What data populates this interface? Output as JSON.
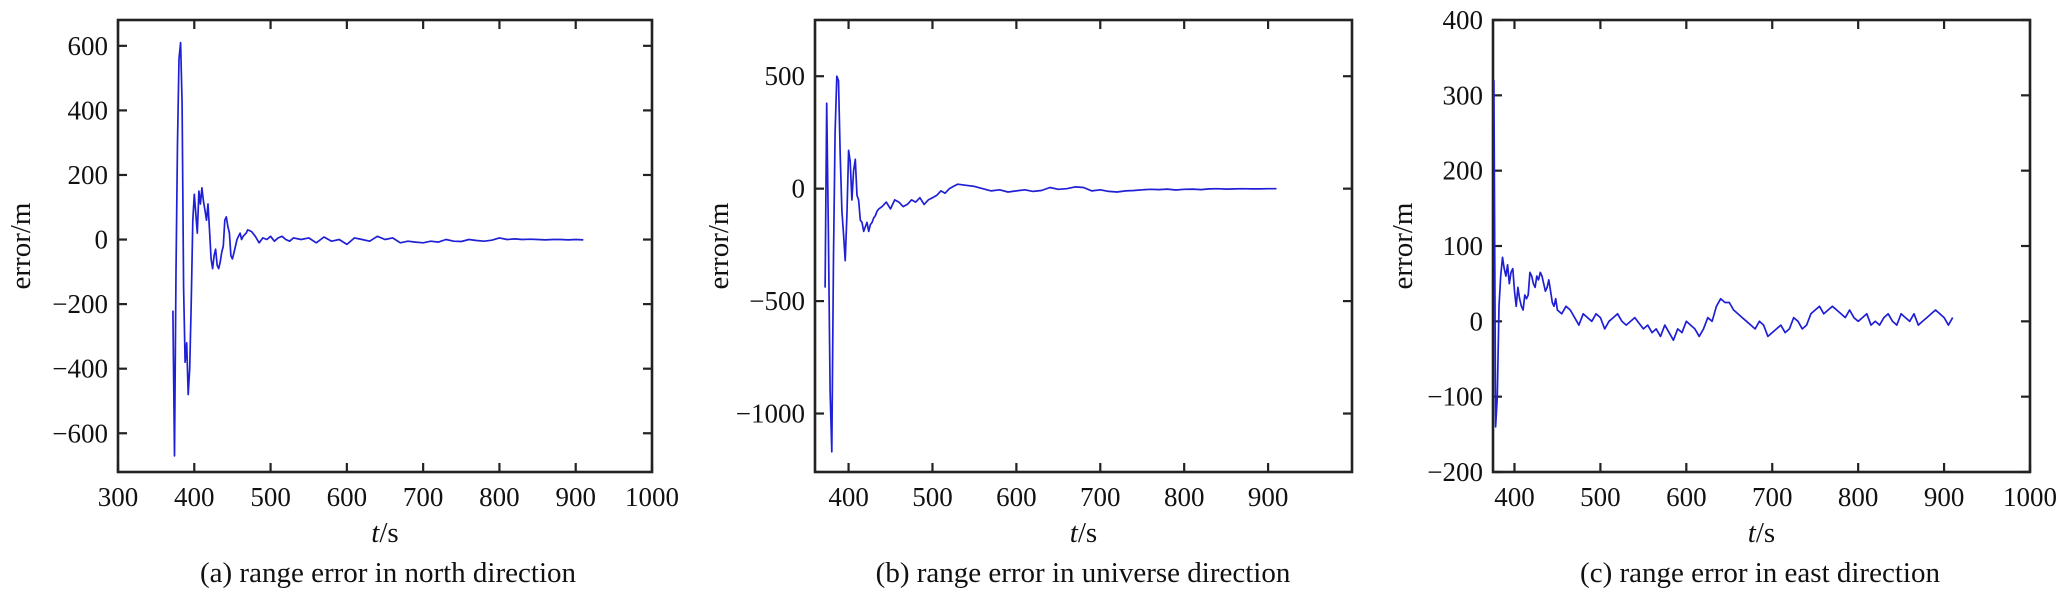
{
  "chart_data": [
    {
      "type": "line",
      "caption": "(a) range error in north direction",
      "xlabel_italic": "t",
      "xlabel_unit": "/s",
      "ylabel": "error/m",
      "xlim": [
        300,
        1000
      ],
      "ylim": [
        -720,
        680
      ],
      "xticks": [
        300,
        400,
        500,
        600,
        700,
        800,
        900,
        1000
      ],
      "yticks": [
        -600,
        -400,
        -200,
        0,
        200,
        400,
        600
      ],
      "ytick_labels": [
        "−600",
        "−400",
        "−200",
        "0",
        "200",
        "400",
        "600"
      ],
      "grid": false,
      "line_color": "#1f1fd6",
      "x": [
        372,
        374,
        376,
        378,
        380,
        382,
        384,
        386,
        388,
        390,
        392,
        394,
        396,
        398,
        400,
        402,
        404,
        406,
        408,
        410,
        412,
        414,
        416,
        418,
        420,
        422,
        424,
        426,
        428,
        430,
        432,
        434,
        436,
        438,
        440,
        442,
        444,
        446,
        448,
        450,
        452,
        454,
        456,
        458,
        460,
        462,
        464,
        466,
        468,
        470,
        475,
        480,
        485,
        490,
        495,
        500,
        505,
        510,
        515,
        520,
        525,
        530,
        540,
        550,
        560,
        570,
        580,
        590,
        600,
        610,
        620,
        630,
        640,
        650,
        660,
        670,
        680,
        690,
        700,
        710,
        720,
        730,
        740,
        750,
        760,
        770,
        780,
        790,
        800,
        810,
        820,
        830,
        840,
        850,
        860,
        870,
        880,
        890,
        900,
        910
      ],
      "y": [
        -220,
        -670,
        -100,
        300,
        560,
        610,
        420,
        -150,
        -380,
        -320,
        -480,
        -400,
        -200,
        60,
        140,
        80,
        20,
        150,
        110,
        160,
        120,
        90,
        60,
        110,
        30,
        -60,
        -90,
        -50,
        -30,
        -80,
        -90,
        -70,
        -40,
        -20,
        60,
        70,
        40,
        20,
        -50,
        -60,
        -40,
        -20,
        0,
        10,
        20,
        0,
        10,
        15,
        20,
        30,
        25,
        10,
        -10,
        5,
        0,
        10,
        -5,
        5,
        10,
        0,
        -5,
        5,
        0,
        5,
        -10,
        8,
        -5,
        0,
        -15,
        5,
        0,
        -5,
        10,
        0,
        5,
        -10,
        -5,
        -8,
        -10,
        -5,
        -8,
        0,
        -5,
        -6,
        0,
        -3,
        -5,
        -2,
        5,
        0,
        2,
        0,
        1,
        0,
        -1,
        0,
        0,
        -1,
        0,
        -1
      ]
    },
    {
      "type": "line",
      "caption": "(b) range error in universe direction",
      "xlabel_italic": "t",
      "xlabel_unit": "/s",
      "ylabel": "error/m",
      "xlim": [
        360,
        1000
      ],
      "ylim": [
        -1260,
        750
      ],
      "xticks": [
        400,
        500,
        600,
        700,
        800,
        900
      ],
      "yticks": [
        -1000,
        -500,
        0,
        500
      ],
      "ytick_labels": [
        "−1000",
        "−500",
        "0",
        "500"
      ],
      "grid": false,
      "line_color": "#1f1fd6",
      "x": [
        372,
        374,
        376,
        378,
        380,
        382,
        384,
        386,
        388,
        390,
        392,
        394,
        396,
        398,
        400,
        402,
        404,
        406,
        408,
        410,
        412,
        414,
        416,
        418,
        420,
        422,
        424,
        426,
        428,
        430,
        432,
        434,
        436,
        440,
        445,
        450,
        455,
        460,
        465,
        470,
        475,
        480,
        485,
        490,
        495,
        500,
        505,
        510,
        515,
        520,
        525,
        530,
        540,
        550,
        560,
        570,
        580,
        590,
        600,
        610,
        620,
        630,
        640,
        650,
        660,
        670,
        680,
        690,
        700,
        710,
        720,
        730,
        740,
        750,
        760,
        770,
        780,
        790,
        800,
        810,
        820,
        830,
        840,
        850,
        860,
        870,
        880,
        890,
        900,
        910
      ],
      "y": [
        -440,
        380,
        -200,
        -900,
        -1170,
        -300,
        250,
        500,
        480,
        150,
        -100,
        -200,
        -320,
        -120,
        170,
        120,
        -50,
        80,
        130,
        -30,
        -50,
        -140,
        -150,
        -190,
        -170,
        -150,
        -190,
        -160,
        -150,
        -130,
        -120,
        -100,
        -90,
        -80,
        -60,
        -90,
        -50,
        -60,
        -80,
        -70,
        -50,
        -60,
        -40,
        -70,
        -50,
        -40,
        -30,
        -10,
        -20,
        0,
        10,
        20,
        15,
        10,
        0,
        -10,
        -5,
        -15,
        -10,
        -5,
        -12,
        -8,
        5,
        -3,
        0,
        8,
        5,
        -10,
        -5,
        -12,
        -15,
        -10,
        -8,
        -5,
        -3,
        -4,
        -2,
        -6,
        -3,
        -2,
        -4,
        -1,
        0,
        -2,
        -1,
        0,
        -1,
        -1,
        0,
        0
      ]
    },
    {
      "type": "line",
      "caption": "(c) range error in east direction",
      "xlabel_italic": "t",
      "xlabel_unit": "/s",
      "ylabel": "error/m",
      "xlim": [
        375,
        1000
      ],
      "ylim": [
        -200,
        400
      ],
      "xticks": [
        400,
        500,
        600,
        700,
        800,
        900,
        1000
      ],
      "yticks": [
        -200,
        -100,
        0,
        100,
        200,
        300,
        400
      ],
      "ytick_labels": [
        "−200",
        "−100",
        "0",
        "100",
        "200",
        "300",
        "400"
      ],
      "grid": false,
      "line_color": "#1f1fd6",
      "x": [
        376,
        378,
        380,
        382,
        384,
        386,
        388,
        390,
        392,
        394,
        396,
        398,
        400,
        402,
        404,
        406,
        408,
        410,
        412,
        414,
        416,
        418,
        420,
        422,
        424,
        426,
        428,
        430,
        432,
        434,
        436,
        438,
        440,
        442,
        444,
        446,
        448,
        450,
        455,
        460,
        465,
        470,
        475,
        480,
        485,
        490,
        495,
        500,
        505,
        510,
        515,
        520,
        525,
        530,
        540,
        550,
        555,
        560,
        565,
        570,
        575,
        580,
        585,
        590,
        595,
        600,
        605,
        610,
        615,
        620,
        625,
        630,
        635,
        640,
        645,
        650,
        655,
        660,
        665,
        670,
        675,
        680,
        685,
        690,
        695,
        700,
        705,
        710,
        715,
        720,
        725,
        730,
        735,
        740,
        745,
        750,
        755,
        760,
        765,
        770,
        775,
        780,
        785,
        790,
        795,
        800,
        805,
        810,
        815,
        820,
        825,
        830,
        835,
        840,
        845,
        850,
        855,
        860,
        865,
        870,
        875,
        880,
        885,
        890,
        895,
        900,
        905,
        910
      ],
      "y": [
        320,
        -140,
        -100,
        20,
        60,
        85,
        70,
        60,
        75,
        50,
        65,
        70,
        40,
        20,
        45,
        30,
        20,
        15,
        35,
        30,
        35,
        65,
        60,
        50,
        45,
        60,
        55,
        65,
        60,
        50,
        40,
        45,
        55,
        40,
        25,
        20,
        30,
        15,
        10,
        20,
        15,
        5,
        -5,
        10,
        5,
        0,
        10,
        5,
        -10,
        0,
        5,
        10,
        0,
        -5,
        5,
        -10,
        -5,
        -15,
        -10,
        -20,
        -5,
        -15,
        -25,
        -10,
        -15,
        0,
        -5,
        -10,
        -20,
        -10,
        5,
        0,
        20,
        30,
        25,
        25,
        15,
        10,
        5,
        0,
        -5,
        -10,
        0,
        -5,
        -20,
        -15,
        -10,
        -5,
        -15,
        -10,
        5,
        0,
        -10,
        -5,
        10,
        15,
        20,
        10,
        15,
        20,
        15,
        10,
        5,
        15,
        5,
        0,
        5,
        10,
        -5,
        0,
        -5,
        5,
        10,
        0,
        -5,
        10,
        5,
        0,
        10,
        -5,
        0,
        5,
        10,
        15,
        10,
        5,
        -5,
        5
      ]
    }
  ]
}
